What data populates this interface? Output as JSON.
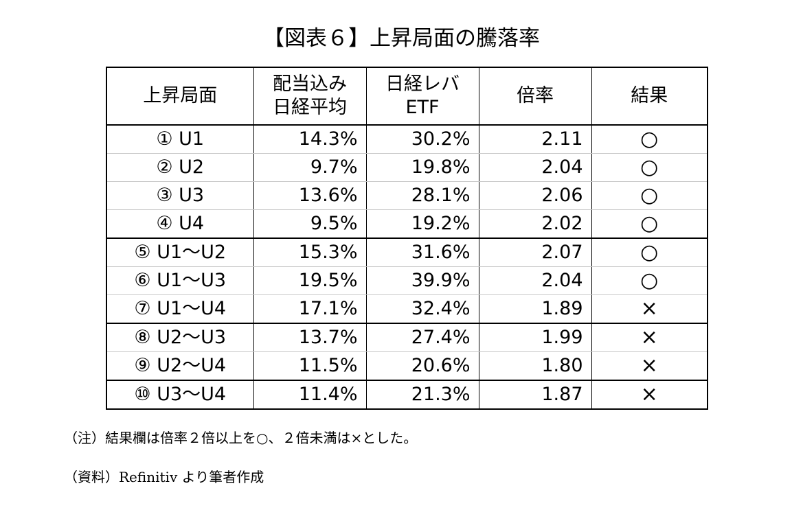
{
  "title": "【図表６】上昇局面の騰落率",
  "table": {
    "headers": [
      {
        "line1": "上昇局面",
        "line2": ""
      },
      {
        "line1": "配当込み",
        "line2": "日経平均"
      },
      {
        "line1": "日経レバ",
        "line2": "ETF"
      },
      {
        "line1": "倍率",
        "line2": ""
      },
      {
        "line1": "結果",
        "line2": ""
      }
    ],
    "rows": [
      {
        "phase": "① U1",
        "nikkei": "14.3%",
        "etf": "30.2%",
        "ratio": "2.11",
        "result": "○"
      },
      {
        "phase": "② U2",
        "nikkei": "9.7%",
        "etf": "19.8%",
        "ratio": "2.04",
        "result": "○"
      },
      {
        "phase": "③ U3",
        "nikkei": "13.6%",
        "etf": "28.1%",
        "ratio": "2.06",
        "result": "○"
      },
      {
        "phase": "④ U4",
        "nikkei": "9.5%",
        "etf": "19.2%",
        "ratio": "2.02",
        "result": "○"
      },
      {
        "phase": "⑤ U1～U2",
        "nikkei": "15.3%",
        "etf": "31.6%",
        "ratio": "2.07",
        "result": "○"
      },
      {
        "phase": "⑥ U1～U3",
        "nikkei": "19.5%",
        "etf": "39.9%",
        "ratio": "2.04",
        "result": "○"
      },
      {
        "phase": "⑦ U1～U4",
        "nikkei": "17.1%",
        "etf": "32.4%",
        "ratio": "1.89",
        "result": "×"
      },
      {
        "phase": "⑧ U2～U3",
        "nikkei": "13.7%",
        "etf": "27.4%",
        "ratio": "1.99",
        "result": "×"
      },
      {
        "phase": "⑨ U2～U4",
        "nikkei": "11.5%",
        "etf": "20.6%",
        "ratio": "1.80",
        "result": "×"
      },
      {
        "phase": "⑩ U3～U4",
        "nikkei": "11.4%",
        "etf": "21.3%",
        "ratio": "1.87",
        "result": "×"
      }
    ]
  },
  "notes": {
    "note": "（注）結果欄は倍率２倍以上を○、２倍未満は×とした。",
    "source": "（資料）Refinitiv より筆者作成"
  }
}
